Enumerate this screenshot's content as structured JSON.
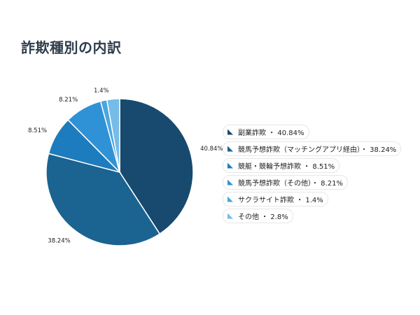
{
  "chart_data": {
    "type": "pie",
    "title": "詐欺種別の内訳",
    "unit": "%",
    "slices": [
      {
        "name": "副業詐欺",
        "value": 40.84,
        "color": "#174a6e",
        "label": "40.84%",
        "legend": "副業詐欺 ・ 40.84%"
      },
      {
        "name": "競馬予想詐欺（マッチングアプリ経由）",
        "value": 38.24,
        "color": "#1b6391",
        "label": "38.24%",
        "legend": "競馬予想詐欺（マッチングアプリ経由）・ 38.24%"
      },
      {
        "name": "競艇・競輪予想詐欺",
        "value": 8.51,
        "color": "#1d7cbd",
        "label": "8.51%",
        "legend": "競艇・競輪予想詐欺 ・ 8.51%"
      },
      {
        "name": "競馬予想詐欺（その他）",
        "value": 8.21,
        "color": "#2f92d6",
        "label": "8.21%",
        "legend": "競馬予想詐欺（その他）・ 8.21%"
      },
      {
        "name": "サクラサイト詐欺",
        "value": 1.4,
        "color": "#4aa6e2",
        "label": "1.4%",
        "legend": "サクラサイト詐欺 ・ 1.4%"
      },
      {
        "name": "その他",
        "value": 2.8,
        "color": "#76bce8",
        "label": "",
        "legend": "その他 ・ 2.8%"
      }
    ],
    "legend_position": "right"
  }
}
